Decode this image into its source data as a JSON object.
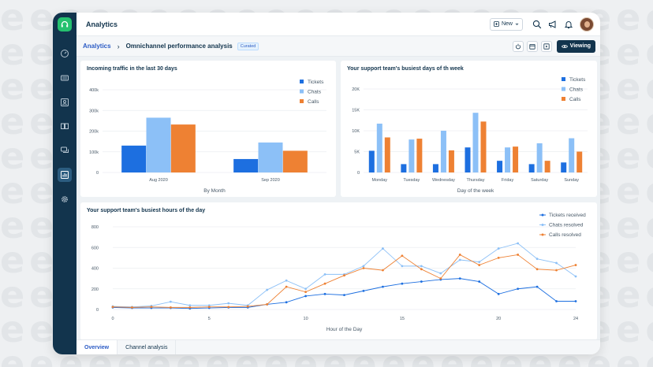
{
  "app": {
    "title": "Analytics",
    "new_label": "New"
  },
  "breadcrumb": {
    "root": "Analytics",
    "separator": "›",
    "current": "Omnichannel performance analysis",
    "badge": "Curated"
  },
  "toolbar": {
    "viewing_label": "Viewing"
  },
  "tabs": [
    {
      "label": "Overview",
      "active": true
    },
    {
      "label": "Channel analysis",
      "active": false
    }
  ],
  "colors": {
    "tickets": "#1d6fe0",
    "chats": "#8cc0f7",
    "calls": "#ee8133",
    "sidebar": "#12344d"
  },
  "chart_data": [
    {
      "type": "bar",
      "title": "Incoming traffic in the last 30 days",
      "categories": [
        "Aug 2020",
        "Sep 2020"
      ],
      "xlabel": "By Month",
      "ylabel": "",
      "ylim": [
        0,
        400000
      ],
      "yticks": [
        "0",
        "100k",
        "200k",
        "300k",
        "400k"
      ],
      "legend": "top-right",
      "series": [
        {
          "name": "Tickets",
          "values": [
            130000,
            65000
          ]
        },
        {
          "name": "Chats",
          "values": [
            265000,
            145000
          ]
        },
        {
          "name": "Calls",
          "values": [
            232000,
            105000
          ]
        }
      ]
    },
    {
      "type": "bar",
      "title": "Your support team's busiest days of th week",
      "categories": [
        "Monday",
        "Tuesday",
        "Wednesday",
        "Thursday",
        "Friday",
        "Saturday",
        "Sunday"
      ],
      "xlabel": "Day of the week",
      "ylabel": "",
      "ylim": [
        0,
        20000
      ],
      "yticks": [
        "0",
        "5K",
        "10K",
        "15K",
        "20K"
      ],
      "legend": "top-right",
      "series": [
        {
          "name": "Tickets",
          "values": [
            5200,
            2000,
            2000,
            6000,
            2800,
            2000,
            2400
          ]
        },
        {
          "name": "Chats",
          "values": [
            11700,
            7900,
            10000,
            14300,
            6000,
            7000,
            8200
          ]
        },
        {
          "name": "Calls",
          "values": [
            8400,
            8100,
            5300,
            12200,
            6200,
            2800,
            5000
          ]
        }
      ]
    },
    {
      "type": "line",
      "title": "Your support team's busiest hours of the day",
      "xlabel": "Hour of the Day",
      "ylabel": "",
      "x": [
        0,
        1,
        2,
        3,
        4,
        5,
        6,
        7,
        8,
        9,
        10,
        11,
        12,
        13,
        14,
        15,
        16,
        17,
        18,
        19,
        20,
        21,
        22,
        23,
        24
      ],
      "xlim": [
        0,
        24
      ],
      "ylim": [
        0,
        800
      ],
      "xticks": [
        "0",
        "5",
        "10",
        "15",
        "20",
        "24"
      ],
      "yticks": [
        "0",
        "200",
        "400",
        "600",
        "800"
      ],
      "legend": "top-right",
      "series": [
        {
          "name": "Tickets received",
          "values": [
            20,
            15,
            15,
            15,
            10,
            15,
            20,
            20,
            50,
            70,
            130,
            150,
            140,
            180,
            220,
            250,
            270,
            290,
            300,
            270,
            150,
            200,
            220,
            80,
            80
          ]
        },
        {
          "name": "Chats resolved",
          "values": [
            30,
            25,
            35,
            75,
            40,
            40,
            60,
            40,
            190,
            280,
            200,
            340,
            340,
            420,
            590,
            420,
            420,
            350,
            480,
            460,
            590,
            640,
            490,
            450,
            320
          ]
        },
        {
          "name": "Calls resolved",
          "values": [
            25,
            20,
            25,
            20,
            20,
            25,
            25,
            30,
            50,
            220,
            170,
            250,
            330,
            400,
            380,
            520,
            390,
            300,
            530,
            430,
            500,
            530,
            390,
            380,
            430
          ]
        }
      ]
    }
  ]
}
